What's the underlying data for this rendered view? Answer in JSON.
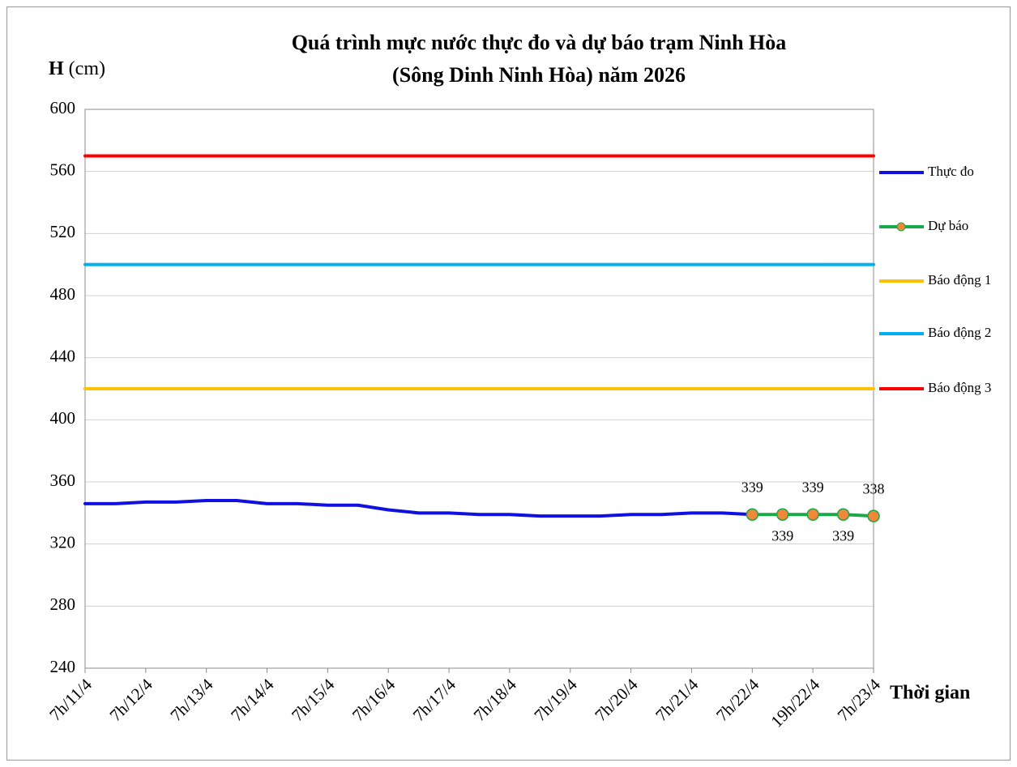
{
  "chart_data": {
    "type": "line",
    "title": [
      "Quá trình mực nước thực đo và dự báo trạm Ninh Hòa",
      "(Sông Dinh Ninh Hòa) năm 2026"
    ],
    "y_label": {
      "symbol": "H",
      "unit": "(cm)"
    },
    "x_label": "Thời gian",
    "categories": [
      "7h/11/4",
      null,
      "7h/12/4",
      null,
      "7h/13/4",
      null,
      "7h/14/4",
      null,
      "7h/15/4",
      null,
      "7h/16/4",
      null,
      "7h/17/4",
      null,
      "7h/18/4",
      null,
      "7h/19/4",
      null,
      "7h/20/4",
      null,
      "7h/21/4",
      null,
      "7h/22/4",
      null,
      "19h/22/4",
      null,
      "7h/23/4"
    ],
    "series": [
      {
        "name": "Thực đo",
        "color": "#1010e0",
        "values": [
          346,
          346,
          347,
          347,
          348,
          348,
          346,
          346,
          345,
          345,
          342,
          340,
          340,
          339,
          339,
          338,
          338,
          338,
          339,
          339,
          340,
          340,
          339,
          null,
          null,
          null,
          null
        ]
      },
      {
        "name": "Dự báo",
        "color": "#19a84a",
        "marker_color": "#f0883a",
        "data_labels": true,
        "values": [
          null,
          null,
          null,
          null,
          null,
          null,
          null,
          null,
          null,
          null,
          null,
          null,
          null,
          null,
          null,
          null,
          null,
          null,
          null,
          null,
          null,
          null,
          339,
          339,
          339,
          339,
          338
        ]
      },
      {
        "name": "Báo động 1",
        "color": "#ffc000",
        "values": [
          420,
          420,
          420,
          420,
          420,
          420,
          420,
          420,
          420,
          420,
          420,
          420,
          420,
          420,
          420,
          420,
          420,
          420,
          420,
          420,
          420,
          420,
          420,
          420,
          420,
          420,
          420
        ]
      },
      {
        "name": "Báo động 2",
        "color": "#00b0f0",
        "values": [
          500,
          500,
          500,
          500,
          500,
          500,
          500,
          500,
          500,
          500,
          500,
          500,
          500,
          500,
          500,
          500,
          500,
          500,
          500,
          500,
          500,
          500,
          500,
          500,
          500,
          500,
          500
        ]
      },
      {
        "name": "Báo động 3",
        "color": "#ff0000",
        "values": [
          570,
          570,
          570,
          570,
          570,
          570,
          570,
          570,
          570,
          570,
          570,
          570,
          570,
          570,
          570,
          570,
          570,
          570,
          570,
          570,
          570,
          570,
          570,
          570,
          570,
          570,
          570
        ]
      }
    ],
    "ylim": [
      240,
      600
    ],
    "yticks": [
      240,
      280,
      320,
      360,
      400,
      440,
      480,
      520,
      560,
      600
    ],
    "grid": true,
    "legend": "right"
  }
}
